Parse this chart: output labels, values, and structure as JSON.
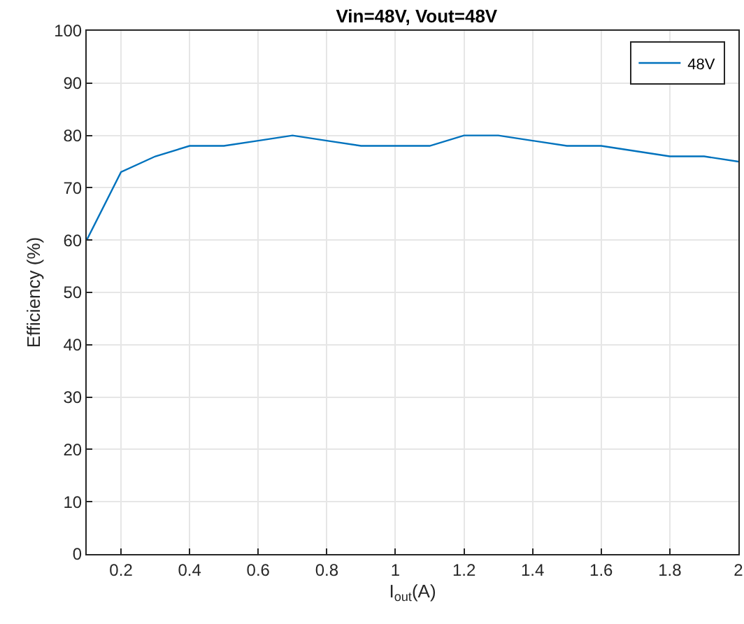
{
  "chart_data": {
    "type": "line",
    "title": "Vin=48V, Vout=48V",
    "xlabel": "I$_{out}$(A)",
    "ylabel": "Efficiency (%)",
    "x": [
      0.1,
      0.2,
      0.3,
      0.4,
      0.5,
      0.6,
      0.7,
      0.8,
      0.9,
      1.0,
      1.1,
      1.2,
      1.3,
      1.4,
      1.5,
      1.6,
      1.7,
      1.8,
      1.9,
      2.0
    ],
    "series": [
      {
        "name": "48V",
        "color": "#0072bd",
        "values": [
          60,
          73,
          76,
          78,
          78,
          79,
          80,
          79,
          78,
          78,
          78,
          80,
          80,
          79,
          78,
          78,
          77,
          76,
          76,
          75
        ]
      }
    ],
    "xlim": [
      0.1,
      2
    ],
    "xticks": [
      0.2,
      0.4,
      0.6,
      0.8,
      1,
      1.2,
      1.4,
      1.6,
      1.8,
      2
    ],
    "ylim": [
      0,
      100
    ],
    "yticks": [
      0,
      10,
      20,
      30,
      40,
      50,
      60,
      70,
      80,
      90,
      100
    ],
    "grid": true,
    "legend": "top right",
    "marker": "none",
    "line_style": "solid"
  }
}
